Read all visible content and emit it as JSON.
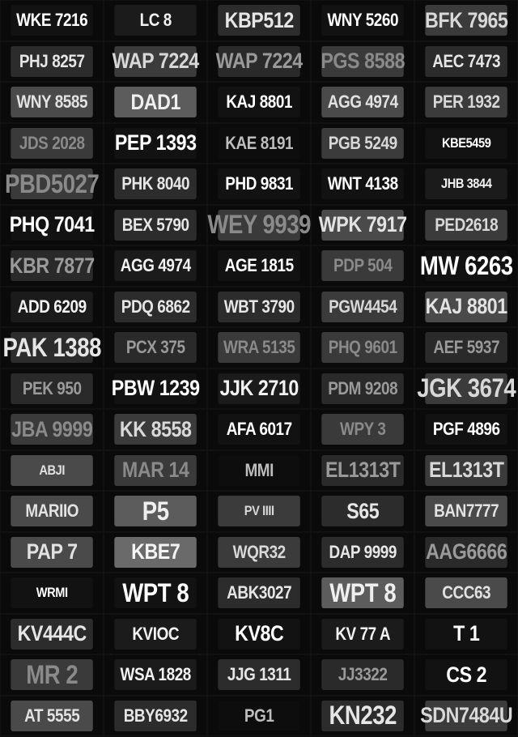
{
  "plates": [
    {
      "text": "WKE 7216",
      "tone": "t3",
      "size": "s-md"
    },
    {
      "text": "LC 8",
      "tone": "t0",
      "size": "s-md"
    },
    {
      "text": "KBP512",
      "tone": "t1",
      "size": "s-lg"
    },
    {
      "text": "WNY 5260",
      "tone": "t3",
      "size": "s-md"
    },
    {
      "text": "BFK 7965",
      "tone": "t2",
      "size": "s-lg"
    },
    {
      "text": "PHJ 8257",
      "tone": "t1",
      "size": "s-md"
    },
    {
      "text": "WAP 7224",
      "tone": "t2",
      "size": "s-lg"
    },
    {
      "text": "WAP 7224",
      "tone": "t5",
      "size": "s-lg"
    },
    {
      "text": "PGS 8588",
      "tone": "t8",
      "size": "s-lg"
    },
    {
      "text": "AEC 7473",
      "tone": "t1",
      "size": "s-md"
    },
    {
      "text": "WNY 8585",
      "tone": "t4",
      "size": "s-md"
    },
    {
      "text": "DAD1",
      "tone": "t6",
      "size": "s-lg"
    },
    {
      "text": "KAJ 8801",
      "tone": "t3",
      "size": "s-md"
    },
    {
      "text": "AGG 4974",
      "tone": "t4",
      "size": "s-md"
    },
    {
      "text": "PER 1932",
      "tone": "t2",
      "size": "s-md"
    },
    {
      "text": "JDS 2028",
      "tone": "t8",
      "size": "s-md"
    },
    {
      "text": "PEP 1393",
      "tone": "t3",
      "size": "s-lg"
    },
    {
      "text": "KAE 8191",
      "tone": "t7",
      "size": "s-md"
    },
    {
      "text": "PGB 5249",
      "tone": "t2",
      "size": "s-md"
    },
    {
      "text": "KBE5459",
      "tone": "t3",
      "size": "s-sm"
    },
    {
      "text": "PBD5027",
      "tone": "t8",
      "size": "s-xl"
    },
    {
      "text": "PHK 8040",
      "tone": "t1",
      "size": "s-md"
    },
    {
      "text": "PHD 9831",
      "tone": "t3",
      "size": "s-md"
    },
    {
      "text": "WNT 4138",
      "tone": "t3",
      "size": "s-md"
    },
    {
      "text": "JHB 3844",
      "tone": "t0",
      "size": "s-sm"
    },
    {
      "text": "PHQ 7041",
      "tone": "t3",
      "size": "s-lg"
    },
    {
      "text": "BEX 5790",
      "tone": "t1",
      "size": "s-md"
    },
    {
      "text": "WEY 9939",
      "tone": "t8",
      "size": "s-xl"
    },
    {
      "text": "WPK 7917",
      "tone": "t4",
      "size": "s-lg"
    },
    {
      "text": "PED2618",
      "tone": "t2",
      "size": "s-md"
    },
    {
      "text": "KBR 7877",
      "tone": "t5",
      "size": "s-lg"
    },
    {
      "text": "AGG 4974",
      "tone": "t0",
      "size": "s-md"
    },
    {
      "text": "AGE 1815",
      "tone": "t3",
      "size": "s-md"
    },
    {
      "text": "PDP 504",
      "tone": "t8",
      "size": "s-md"
    },
    {
      "text": "MW 6263",
      "tone": "t3",
      "size": "s-xl"
    },
    {
      "text": "ADD 6209",
      "tone": "t0",
      "size": "s-md"
    },
    {
      "text": "PDQ 6862",
      "tone": "t1",
      "size": "s-md"
    },
    {
      "text": "WBT 3790",
      "tone": "t1",
      "size": "s-md"
    },
    {
      "text": "PGW4454",
      "tone": "t2",
      "size": "s-md"
    },
    {
      "text": "KAJ 8801",
      "tone": "t4",
      "size": "s-lg"
    },
    {
      "text": "PAK 1388",
      "tone": "t1",
      "size": "s-xl"
    },
    {
      "text": "PCX 375",
      "tone": "t5",
      "size": "s-md"
    },
    {
      "text": "WRA 5135",
      "tone": "t8",
      "size": "s-md"
    },
    {
      "text": "PHQ 9601",
      "tone": "t8",
      "size": "s-md"
    },
    {
      "text": "AEF 5937",
      "tone": "t5",
      "size": "s-md"
    },
    {
      "text": "PEK 950",
      "tone": "t5",
      "size": "s-md"
    },
    {
      "text": "PBW 1239",
      "tone": "t3",
      "size": "s-lg"
    },
    {
      "text": "JJK 2710",
      "tone": "t0",
      "size": "s-lg"
    },
    {
      "text": "PDM 9208",
      "tone": "t5",
      "size": "s-md"
    },
    {
      "text": "JGK 3674",
      "tone": "t2",
      "size": "s-xl"
    },
    {
      "text": "JBA 9999",
      "tone": "t8",
      "size": "s-lg"
    },
    {
      "text": "KK 8558",
      "tone": "t2",
      "size": "s-lg"
    },
    {
      "text": "AFA 6017",
      "tone": "t3",
      "size": "s-md"
    },
    {
      "text": "WPY 3",
      "tone": "t8",
      "size": "s-md"
    },
    {
      "text": "PGF 4896",
      "tone": "t3",
      "size": "s-md"
    },
    {
      "text": "ABJI",
      "tone": "t4",
      "size": "s-sm"
    },
    {
      "text": "MAR 14",
      "tone": "t8",
      "size": "s-lg"
    },
    {
      "text": "MMI",
      "tone": "t7",
      "size": "s-md"
    },
    {
      "text": "EL1313T",
      "tone": "t5",
      "size": "s-lg"
    },
    {
      "text": "EL1313T",
      "tone": "t2",
      "size": "s-lg"
    },
    {
      "text": "MARIIO",
      "tone": "t4",
      "size": "s-md"
    },
    {
      "text": "P5",
      "tone": "t6",
      "size": "s-xl"
    },
    {
      "text": "PV IIII",
      "tone": "t2",
      "size": "s-sm"
    },
    {
      "text": "S65",
      "tone": "t1",
      "size": "s-lg"
    },
    {
      "text": "BAN7777",
      "tone": "t4",
      "size": "s-md"
    },
    {
      "text": "PAP 7",
      "tone": "t4",
      "size": "s-lg"
    },
    {
      "text": "KBE7",
      "tone": "t9",
      "size": "s-lg"
    },
    {
      "text": "WQR32",
      "tone": "t2",
      "size": "s-md"
    },
    {
      "text": "DAP 9999",
      "tone": "t1",
      "size": "s-md"
    },
    {
      "text": "AAG6666",
      "tone": "t5",
      "size": "s-lg"
    },
    {
      "text": "WRMI",
      "tone": "t3",
      "size": "s-sm"
    },
    {
      "text": "WPT 8",
      "tone": "t3",
      "size": "s-xl"
    },
    {
      "text": "ABK3027",
      "tone": "t1",
      "size": "s-md"
    },
    {
      "text": "WPT 8",
      "tone": "t6",
      "size": "s-xl"
    },
    {
      "text": "CCC63",
      "tone": "t4",
      "size": "s-md"
    },
    {
      "text": "KV444C",
      "tone": "t1",
      "size": "s-lg"
    },
    {
      "text": "KVIOC",
      "tone": "t0",
      "size": "s-md"
    },
    {
      "text": "KV8C",
      "tone": "t3",
      "size": "s-lg"
    },
    {
      "text": "KV 77 A",
      "tone": "t0",
      "size": "s-md"
    },
    {
      "text": "T 1",
      "tone": "t3",
      "size": "s-lg"
    },
    {
      "text": "MR 2",
      "tone": "t8",
      "size": "s-xl"
    },
    {
      "text": "WSA 1828",
      "tone": "t0",
      "size": "s-md"
    },
    {
      "text": "JJG 1311",
      "tone": "t1",
      "size": "s-md"
    },
    {
      "text": "JJ3322",
      "tone": "t5",
      "size": "s-md"
    },
    {
      "text": "CS 2",
      "tone": "t3",
      "size": "s-lg"
    },
    {
      "text": "AT 5555",
      "tone": "t4",
      "size": "s-md"
    },
    {
      "text": "BBY6932",
      "tone": "t1",
      "size": "s-md"
    },
    {
      "text": "PG1",
      "tone": "t7",
      "size": "s-md"
    },
    {
      "text": "KN232",
      "tone": "t1",
      "size": "s-xl"
    },
    {
      "text": "SDN7484U",
      "tone": "t2",
      "size": "s-lg"
    }
  ]
}
